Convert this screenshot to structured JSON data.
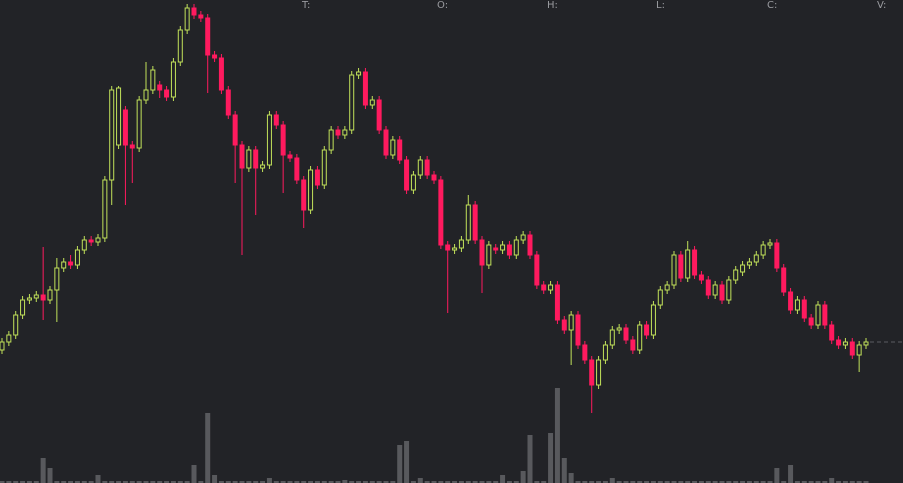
{
  "chart_data": {
    "type": "candlestick",
    "header_labels": [
      "T:",
      "O:",
      "H:",
      "L:",
      "C:",
      "V:"
    ],
    "up_color": "#c2e25a",
    "down_color": "#ff1a5f",
    "volume_color": "#58595d",
    "ylim": [
      0,
      483
    ],
    "vlim": [
      0,
      483
    ],
    "open": [
      133,
      141,
      148,
      168,
      183,
      185,
      188,
      183,
      193,
      215,
      221,
      218,
      233,
      243,
      241,
      245,
      303,
      338,
      373,
      338,
      335,
      383,
      393,
      398,
      393,
      386,
      421,
      453,
      475,
      468,
      465,
      428,
      425,
      393,
      368,
      338,
      315,
      333,
      315,
      318,
      368,
      358,
      328,
      325,
      303,
      273,
      313,
      298,
      333,
      353,
      348,
      353,
      408,
      411,
      378,
      383,
      353,
      328,
      343,
      323,
      293,
      308,
      323,
      308,
      303,
      238,
      233,
      235,
      243,
      278,
      243,
      218,
      235,
      233,
      238,
      228,
      243,
      248,
      228,
      198,
      193,
      198,
      163,
      153,
      168,
      138,
      123,
      98,
      123,
      138,
      153,
      155,
      143,
      133,
      158,
      148,
      178,
      193,
      198,
      228,
      205,
      233,
      208,
      203,
      188,
      198,
      183,
      203,
      211,
      218,
      221,
      228,
      238,
      240,
      215,
      191,
      173,
      183,
      165,
      158,
      178,
      158,
      143,
      138,
      141,
      128,
      138
    ],
    "high": [
      145,
      152,
      172,
      187,
      189,
      192,
      236,
      197,
      225,
      225,
      228,
      237,
      247,
      247,
      249,
      307,
      397,
      397,
      377,
      342,
      387,
      421,
      417,
      402,
      397,
      425,
      457,
      479,
      479,
      472,
      469,
      432,
      429,
      397,
      372,
      342,
      337,
      337,
      322,
      372,
      372,
      362,
      332,
      329,
      307,
      317,
      317,
      337,
      357,
      357,
      357,
      412,
      415,
      415,
      387,
      387,
      357,
      347,
      347,
      327,
      312,
      327,
      327,
      312,
      307,
      242,
      239,
      247,
      288,
      282,
      247,
      242,
      239,
      242,
      242,
      247,
      252,
      252,
      232,
      202,
      202,
      202,
      167,
      172,
      172,
      142,
      127,
      127,
      142,
      157,
      159,
      159,
      147,
      162,
      162,
      182,
      197,
      202,
      232,
      232,
      242,
      237,
      212,
      207,
      202,
      202,
      207,
      217,
      222,
      225,
      232,
      242,
      244,
      244,
      219,
      195,
      187,
      187,
      169,
      182,
      182,
      162,
      147,
      145,
      145,
      142,
      145
    ],
    "low": [
      129,
      137,
      144,
      164,
      179,
      181,
      163,
      179,
      161,
      211,
      214,
      214,
      229,
      237,
      237,
      241,
      278,
      334,
      278,
      300,
      331,
      379,
      389,
      385,
      382,
      382,
      417,
      449,
      464,
      461,
      390,
      421,
      389,
      364,
      300,
      228,
      311,
      268,
      311,
      314,
      354,
      290,
      321,
      299,
      255,
      269,
      294,
      294,
      329,
      344,
      344,
      349,
      404,
      374,
      374,
      349,
      324,
      324,
      319,
      289,
      289,
      304,
      304,
      299,
      234,
      170,
      229,
      231,
      239,
      239,
      190,
      214,
      229,
      229,
      224,
      224,
      239,
      224,
      194,
      189,
      189,
      159,
      149,
      118,
      134,
      119,
      70,
      94,
      119,
      134,
      149,
      139,
      129,
      129,
      144,
      144,
      174,
      189,
      194,
      201,
      201,
      204,
      199,
      184,
      184,
      179,
      179,
      199,
      207,
      214,
      217,
      224,
      234,
      211,
      187,
      169,
      169,
      161,
      154,
      154,
      154,
      139,
      134,
      134,
      124,
      111,
      134
    ],
    "close": [
      141,
      148,
      168,
      183,
      185,
      188,
      183,
      193,
      215,
      221,
      218,
      233,
      243,
      241,
      245,
      303,
      393,
      395,
      338,
      335,
      383,
      393,
      413,
      393,
      386,
      421,
      453,
      475,
      468,
      465,
      428,
      425,
      393,
      368,
      338,
      315,
      333,
      315,
      318,
      368,
      358,
      328,
      325,
      303,
      273,
      313,
      298,
      333,
      353,
      348,
      353,
      408,
      411,
      378,
      383,
      353,
      328,
      343,
      323,
      293,
      308,
      323,
      308,
      303,
      238,
      233,
      235,
      243,
      278,
      243,
      218,
      238,
      233,
      238,
      228,
      243,
      248,
      228,
      198,
      193,
      198,
      163,
      153,
      168,
      138,
      123,
      98,
      123,
      138,
      153,
      155,
      143,
      133,
      158,
      148,
      178,
      193,
      198,
      228,
      205,
      233,
      208,
      203,
      188,
      198,
      183,
      203,
      213,
      218,
      221,
      228,
      238,
      240,
      215,
      191,
      173,
      183,
      165,
      158,
      178,
      158,
      143,
      138,
      141,
      128,
      138,
      141
    ],
    "volume": [
      2,
      2,
      2,
      2,
      2,
      2,
      25,
      15,
      2,
      2,
      2,
      2,
      2,
      2,
      8,
      2,
      2,
      2,
      2,
      2,
      2,
      2,
      2,
      2,
      2,
      2,
      2,
      2,
      18,
      2,
      70,
      8,
      2,
      2,
      2,
      2,
      2,
      2,
      2,
      5,
      2,
      2,
      2,
      2,
      2,
      2,
      2,
      2,
      2,
      2,
      3,
      2,
      2,
      2,
      2,
      2,
      2,
      2,
      38,
      42,
      2,
      5,
      2,
      2,
      2,
      2,
      2,
      2,
      2,
      2,
      2,
      2,
      2,
      8,
      2,
      2,
      12,
      48,
      2,
      2,
      50,
      95,
      25,
      10,
      2,
      2,
      2,
      2,
      2,
      5,
      2,
      2,
      2,
      2,
      2,
      2,
      2,
      2,
      2,
      2,
      2,
      2,
      2,
      2,
      2,
      2,
      2,
      2,
      2,
      2,
      2,
      2,
      2,
      15,
      2,
      18,
      2,
      2,
      2,
      2,
      2,
      5,
      2,
      2,
      2,
      2,
      2
    ]
  }
}
